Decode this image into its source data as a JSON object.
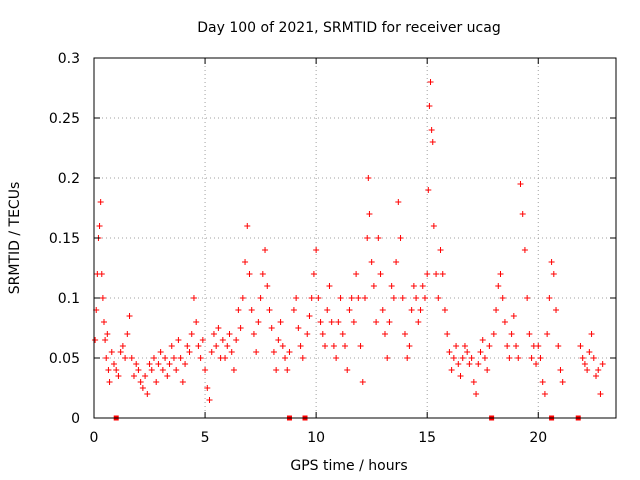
{
  "chart_data": {
    "type": "scatter",
    "title": "Day 100 of 2021, SRMTID for receiver ucag",
    "xlabel": "GPS time / hours",
    "ylabel": "SRMTID / TECUs",
    "xlim": [
      0,
      23.5
    ],
    "ylim": [
      0,
      0.3
    ],
    "x_ticks": [
      "0",
      "5",
      "10",
      "15",
      "20"
    ],
    "x_tick_values": [
      0,
      5,
      10,
      15,
      20
    ],
    "y_ticks": [
      "0",
      "0.05",
      "0.1",
      "0.15",
      "0.2",
      "0.25",
      "0.3"
    ],
    "y_tick_values": [
      0,
      0.05,
      0.1,
      0.15,
      0.2,
      0.25,
      0.3
    ],
    "grid": true,
    "marker": "+",
    "color": "#ff0000",
    "gap_markers_x": [
      1.0,
      8.8,
      9.5,
      17.9,
      20.6,
      21.8
    ],
    "series": [
      {
        "name": "SRMTID",
        "points": [
          [
            0.05,
            0.065
          ],
          [
            0.1,
            0.09
          ],
          [
            0.15,
            0.12
          ],
          [
            0.2,
            0.15
          ],
          [
            0.25,
            0.16
          ],
          [
            0.3,
            0.18
          ],
          [
            0.35,
            0.12
          ],
          [
            0.4,
            0.1
          ],
          [
            0.45,
            0.08
          ],
          [
            0.5,
            0.065
          ],
          [
            0.55,
            0.05
          ],
          [
            0.6,
            0.07
          ],
          [
            0.65,
            0.04
          ],
          [
            0.7,
            0.03
          ],
          [
            0.8,
            0.055
          ],
          [
            0.9,
            0.045
          ],
          [
            1.0,
            0.04
          ],
          [
            1.1,
            0.035
          ],
          [
            1.2,
            0.055
          ],
          [
            1.3,
            0.06
          ],
          [
            1.4,
            0.05
          ],
          [
            1.5,
            0.07
          ],
          [
            1.6,
            0.085
          ],
          [
            1.7,
            0.05
          ],
          [
            1.8,
            0.035
          ],
          [
            1.9,
            0.045
          ],
          [
            2.0,
            0.04
          ],
          [
            2.1,
            0.03
          ],
          [
            2.2,
            0.025
          ],
          [
            2.3,
            0.035
          ],
          [
            2.4,
            0.02
          ],
          [
            2.5,
            0.045
          ],
          [
            2.6,
            0.04
          ],
          [
            2.7,
            0.05
          ],
          [
            2.8,
            0.03
          ],
          [
            2.9,
            0.045
          ],
          [
            3.0,
            0.055
          ],
          [
            3.1,
            0.04
          ],
          [
            3.2,
            0.05
          ],
          [
            3.3,
            0.035
          ],
          [
            3.4,
            0.045
          ],
          [
            3.5,
            0.06
          ],
          [
            3.6,
            0.05
          ],
          [
            3.7,
            0.04
          ],
          [
            3.8,
            0.065
          ],
          [
            3.9,
            0.05
          ],
          [
            4.0,
            0.03
          ],
          [
            4.1,
            0.045
          ],
          [
            4.2,
            0.06
          ],
          [
            4.3,
            0.055
          ],
          [
            4.4,
            0.07
          ],
          [
            4.5,
            0.1
          ],
          [
            4.6,
            0.08
          ],
          [
            4.7,
            0.06
          ],
          [
            4.8,
            0.05
          ],
          [
            4.9,
            0.065
          ],
          [
            5.0,
            0.04
          ],
          [
            5.1,
            0.025
          ],
          [
            5.2,
            0.015
          ],
          [
            5.3,
            0.055
          ],
          [
            5.4,
            0.07
          ],
          [
            5.5,
            0.06
          ],
          [
            5.6,
            0.075
          ],
          [
            5.7,
            0.05
          ],
          [
            5.8,
            0.065
          ],
          [
            5.9,
            0.05
          ],
          [
            6.0,
            0.06
          ],
          [
            6.1,
            0.07
          ],
          [
            6.2,
            0.055
          ],
          [
            6.3,
            0.04
          ],
          [
            6.4,
            0.065
          ],
          [
            6.5,
            0.09
          ],
          [
            6.6,
            0.075
          ],
          [
            6.7,
            0.1
          ],
          [
            6.8,
            0.13
          ],
          [
            6.9,
            0.16
          ],
          [
            7.0,
            0.12
          ],
          [
            7.1,
            0.09
          ],
          [
            7.2,
            0.07
          ],
          [
            7.3,
            0.055
          ],
          [
            7.4,
            0.08
          ],
          [
            7.5,
            0.1
          ],
          [
            7.6,
            0.12
          ],
          [
            7.7,
            0.14
          ],
          [
            7.8,
            0.11
          ],
          [
            7.9,
            0.09
          ],
          [
            8.0,
            0.075
          ],
          [
            8.1,
            0.055
          ],
          [
            8.2,
            0.04
          ],
          [
            8.3,
            0.065
          ],
          [
            8.4,
            0.08
          ],
          [
            8.5,
            0.06
          ],
          [
            8.6,
            0.05
          ],
          [
            8.7,
            0.04
          ],
          [
            8.8,
            0.055
          ],
          [
            9.0,
            0.09
          ],
          [
            9.1,
            0.1
          ],
          [
            9.2,
            0.075
          ],
          [
            9.3,
            0.06
          ],
          [
            9.4,
            0.05
          ],
          [
            9.6,
            0.07
          ],
          [
            9.7,
            0.085
          ],
          [
            9.8,
            0.1
          ],
          [
            9.9,
            0.12
          ],
          [
            10.0,
            0.14
          ],
          [
            10.1,
            0.1
          ],
          [
            10.2,
            0.08
          ],
          [
            10.3,
            0.07
          ],
          [
            10.4,
            0.06
          ],
          [
            10.5,
            0.09
          ],
          [
            10.6,
            0.11
          ],
          [
            10.7,
            0.08
          ],
          [
            10.8,
            0.06
          ],
          [
            10.9,
            0.05
          ],
          [
            11.0,
            0.08
          ],
          [
            11.1,
            0.1
          ],
          [
            11.2,
            0.07
          ],
          [
            11.3,
            0.06
          ],
          [
            11.4,
            0.04
          ],
          [
            11.5,
            0.09
          ],
          [
            11.6,
            0.1
          ],
          [
            11.7,
            0.08
          ],
          [
            11.8,
            0.12
          ],
          [
            11.9,
            0.1
          ],
          [
            12.0,
            0.06
          ],
          [
            12.1,
            0.03
          ],
          [
            12.2,
            0.1
          ],
          [
            12.3,
            0.15
          ],
          [
            12.35,
            0.2
          ],
          [
            12.4,
            0.17
          ],
          [
            12.5,
            0.13
          ],
          [
            12.6,
            0.11
          ],
          [
            12.7,
            0.08
          ],
          [
            12.8,
            0.15
          ],
          [
            12.9,
            0.12
          ],
          [
            13.0,
            0.09
          ],
          [
            13.1,
            0.07
          ],
          [
            13.2,
            0.05
          ],
          [
            13.3,
            0.08
          ],
          [
            13.4,
            0.11
          ],
          [
            13.5,
            0.1
          ],
          [
            13.6,
            0.13
          ],
          [
            13.7,
            0.18
          ],
          [
            13.8,
            0.15
          ],
          [
            13.9,
            0.1
          ],
          [
            14.0,
            0.07
          ],
          [
            14.1,
            0.05
          ],
          [
            14.2,
            0.06
          ],
          [
            14.3,
            0.09
          ],
          [
            14.4,
            0.11
          ],
          [
            14.5,
            0.1
          ],
          [
            14.6,
            0.08
          ],
          [
            14.7,
            0.09
          ],
          [
            14.8,
            0.11
          ],
          [
            14.9,
            0.1
          ],
          [
            15.0,
            0.12
          ],
          [
            15.05,
            0.19
          ],
          [
            15.1,
            0.26
          ],
          [
            15.15,
            0.28
          ],
          [
            15.2,
            0.24
          ],
          [
            15.25,
            0.23
          ],
          [
            15.3,
            0.16
          ],
          [
            15.4,
            0.12
          ],
          [
            15.5,
            0.1
          ],
          [
            15.6,
            0.14
          ],
          [
            15.7,
            0.12
          ],
          [
            15.8,
            0.09
          ],
          [
            15.9,
            0.07
          ],
          [
            16.0,
            0.055
          ],
          [
            16.1,
            0.04
          ],
          [
            16.2,
            0.05
          ],
          [
            16.3,
            0.06
          ],
          [
            16.4,
            0.045
          ],
          [
            16.5,
            0.035
          ],
          [
            16.6,
            0.05
          ],
          [
            16.7,
            0.06
          ],
          [
            16.8,
            0.055
          ],
          [
            16.9,
            0.045
          ],
          [
            17.0,
            0.05
          ],
          [
            17.1,
            0.03
          ],
          [
            17.2,
            0.02
          ],
          [
            17.3,
            0.045
          ],
          [
            17.4,
            0.055
          ],
          [
            17.5,
            0.065
          ],
          [
            17.6,
            0.05
          ],
          [
            17.7,
            0.04
          ],
          [
            17.8,
            0.06
          ],
          [
            18.0,
            0.07
          ],
          [
            18.1,
            0.09
          ],
          [
            18.2,
            0.11
          ],
          [
            18.3,
            0.12
          ],
          [
            18.4,
            0.1
          ],
          [
            18.5,
            0.08
          ],
          [
            18.6,
            0.06
          ],
          [
            18.7,
            0.05
          ],
          [
            18.8,
            0.07
          ],
          [
            18.9,
            0.085
          ],
          [
            19.0,
            0.06
          ],
          [
            19.1,
            0.05
          ],
          [
            19.2,
            0.195
          ],
          [
            19.3,
            0.17
          ],
          [
            19.4,
            0.14
          ],
          [
            19.5,
            0.1
          ],
          [
            19.6,
            0.07
          ],
          [
            19.7,
            0.05
          ],
          [
            19.8,
            0.06
          ],
          [
            19.9,
            0.045
          ],
          [
            20.0,
            0.06
          ],
          [
            20.1,
            0.05
          ],
          [
            20.2,
            0.03
          ],
          [
            20.3,
            0.02
          ],
          [
            20.4,
            0.07
          ],
          [
            20.5,
            0.1
          ],
          [
            20.6,
            0.13
          ],
          [
            20.7,
            0.12
          ],
          [
            20.8,
            0.09
          ],
          [
            20.9,
            0.06
          ],
          [
            21.0,
            0.04
          ],
          [
            21.1,
            0.03
          ],
          [
            21.9,
            0.06
          ],
          [
            22.0,
            0.05
          ],
          [
            22.1,
            0.045
          ],
          [
            22.2,
            0.04
          ],
          [
            22.3,
            0.055
          ],
          [
            22.4,
            0.07
          ],
          [
            22.5,
            0.05
          ],
          [
            22.6,
            0.035
          ],
          [
            22.7,
            0.04
          ],
          [
            22.8,
            0.02
          ],
          [
            22.9,
            0.045
          ]
        ]
      }
    ]
  }
}
